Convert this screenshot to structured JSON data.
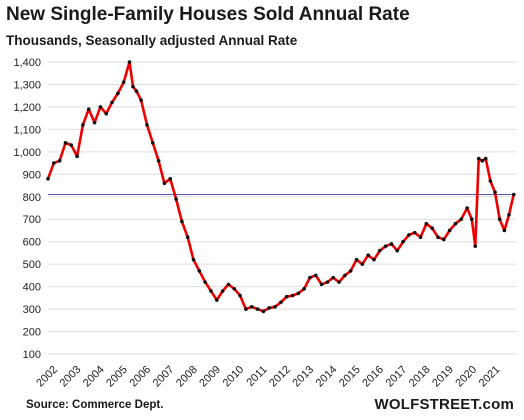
{
  "colors": {
    "series": "#ee0000",
    "points": "#111111",
    "reference": "#5555bb",
    "grid": "#dddddd"
  },
  "chart_data": {
    "type": "line",
    "title": "New Single-Family Houses Sold Annual Rate",
    "subtitle": "Thousands, Seasonally adjusted Annual Rate",
    "source": "Source: Commerce Dept.",
    "brand": "WOLFSTREET.com",
    "xlabel": "",
    "ylabel": "",
    "ylim": [
      100,
      1400
    ],
    "xlim": [
      2002,
      2022.1
    ],
    "yticks": [
      100,
      200,
      300,
      400,
      500,
      600,
      700,
      800,
      900,
      1000,
      1100,
      1200,
      1300,
      1400
    ],
    "ytick_labels": [
      "100",
      "200",
      "300",
      "400",
      "500",
      "600",
      "700",
      "800",
      "900",
      "1,000",
      "1,100",
      "1,200",
      "1,300",
      "1,400"
    ],
    "xticks": [
      "2002",
      "2003",
      "2004",
      "2005",
      "2006",
      "2007",
      "2008",
      "2009",
      "2010",
      "2011",
      "2012",
      "2013",
      "2014",
      "2015",
      "2016",
      "2017",
      "2018",
      "2019",
      "2020",
      "2021"
    ],
    "grid": "horizontal",
    "reference_line": 810,
    "series": [
      {
        "name": "",
        "x": [
          2002.0,
          2002.25,
          2002.5,
          2002.75,
          2003.0,
          2003.25,
          2003.5,
          2003.75,
          2004.0,
          2004.25,
          2004.5,
          2004.75,
          2005.0,
          2005.25,
          2005.5,
          2005.65,
          2005.8,
          2006.0,
          2006.25,
          2006.5,
          2006.75,
          2007.0,
          2007.25,
          2007.5,
          2007.75,
          2008.0,
          2008.25,
          2008.5,
          2008.75,
          2009.0,
          2009.25,
          2009.5,
          2009.75,
          2010.0,
          2010.25,
          2010.5,
          2010.75,
          2011.0,
          2011.25,
          2011.5,
          2011.75,
          2012.0,
          2012.25,
          2012.5,
          2012.75,
          2013.0,
          2013.25,
          2013.5,
          2013.75,
          2014.0,
          2014.25,
          2014.5,
          2014.75,
          2015.0,
          2015.25,
          2015.5,
          2015.75,
          2016.0,
          2016.25,
          2016.5,
          2016.75,
          2017.0,
          2017.25,
          2017.5,
          2017.75,
          2018.0,
          2018.25,
          2018.5,
          2018.75,
          2019.0,
          2019.25,
          2019.5,
          2019.75,
          2020.0,
          2020.2,
          2020.35,
          2020.5,
          2020.65,
          2020.8,
          2021.0,
          2021.2,
          2021.4,
          2021.6,
          2021.8,
          2022.0
        ],
        "values": [
          880,
          950,
          960,
          1040,
          1030,
          980,
          1120,
          1190,
          1130,
          1200,
          1170,
          1220,
          1260,
          1310,
          1400,
          1290,
          1270,
          1230,
          1120,
          1040,
          960,
          860,
          880,
          790,
          690,
          620,
          520,
          470,
          420,
          380,
          340,
          380,
          410,
          390,
          360,
          300,
          310,
          300,
          290,
          305,
          310,
          330,
          355,
          360,
          370,
          390,
          440,
          450,
          410,
          420,
          440,
          420,
          450,
          470,
          520,
          500,
          540,
          520,
          560,
          580,
          590,
          560,
          600,
          630,
          640,
          620,
          680,
          660,
          620,
          610,
          650,
          680,
          700,
          750,
          700,
          580,
          970,
          960,
          970,
          870,
          820,
          700,
          650,
          720,
          810
        ]
      }
    ]
  }
}
